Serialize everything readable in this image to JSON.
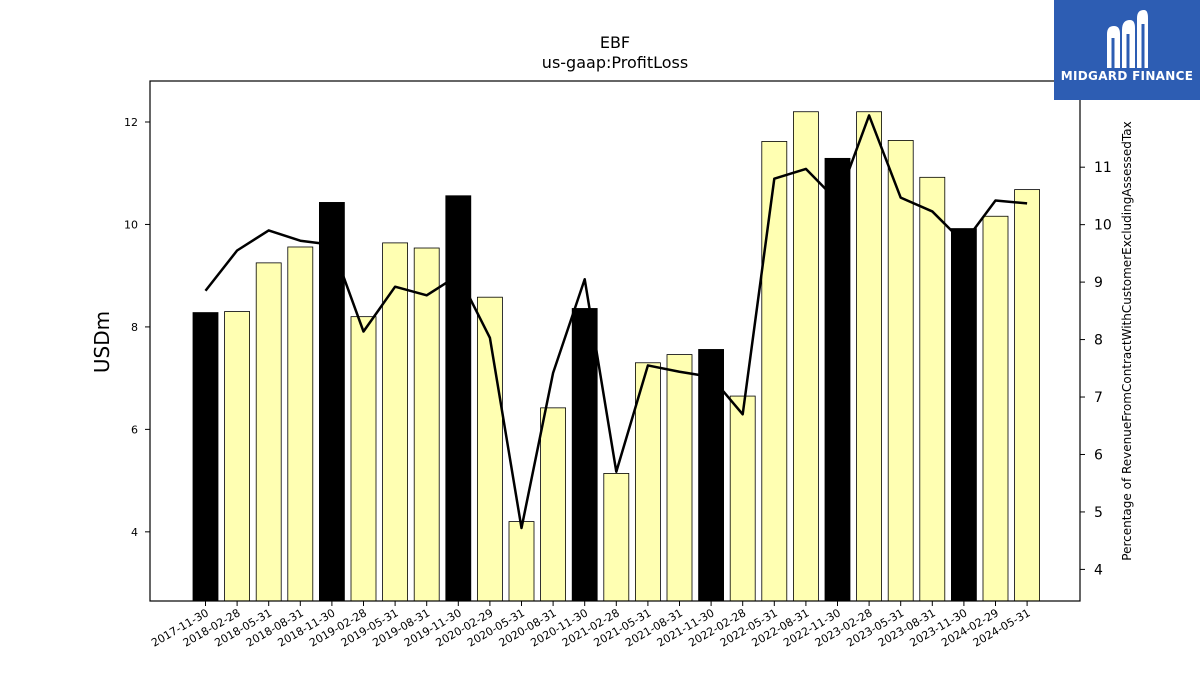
{
  "header": {
    "title": "EBF",
    "subtitle": "us-gaap:ProfitLoss"
  },
  "logo": {
    "text": "MIDGARD FINANCE",
    "icon": "midgard-m-icon",
    "background": "#2d5db3"
  },
  "colors": {
    "bar_highlight": "#000000",
    "bar_default": "#ffffb2",
    "line": "#000000"
  },
  "chart_data": {
    "type": "bar",
    "title": "EBF",
    "subtitle": "us-gaap:ProfitLoss",
    "ylabel": "USDm",
    "ylabel_right": "Percentage of RevenueFromContractWithCustomerExcludingAssessedTax",
    "ylim": [
      2.65,
      12.8
    ],
    "ylim_right": [
      3.45,
      12.5
    ],
    "yticks": [
      4,
      6,
      8,
      10,
      12
    ],
    "yticks_right": [
      4,
      5,
      6,
      7,
      8,
      9,
      10,
      11
    ],
    "grid": false,
    "categories": [
      "2017-11-30",
      "2018-02-28",
      "2018-05-31",
      "2018-08-31",
      "2018-11-30",
      "2019-02-28",
      "2019-05-31",
      "2019-08-31",
      "2019-11-30",
      "2020-02-29",
      "2020-05-31",
      "2020-08-31",
      "2020-11-30",
      "2021-02-28",
      "2021-05-31",
      "2021-08-31",
      "2021-11-30",
      "2022-02-28",
      "2022-05-31",
      "2022-08-31",
      "2022-11-30",
      "2023-02-28",
      "2023-05-31",
      "2023-08-31",
      "2023-11-30",
      "2024-02-29",
      "2024-05-31"
    ],
    "series": [
      {
        "type": "bar",
        "axis": "left",
        "values": [
          8.28,
          8.3,
          9.25,
          9.56,
          10.43,
          8.2,
          9.64,
          9.54,
          10.56,
          8.58,
          4.2,
          6.42,
          8.36,
          5.14,
          7.3,
          7.46,
          7.56,
          6.65,
          11.62,
          12.2,
          11.29,
          12.2,
          11.64,
          10.92,
          9.92,
          10.16,
          10.68
        ],
        "highlight": [
          true,
          false,
          false,
          false,
          true,
          false,
          false,
          false,
          true,
          false,
          false,
          false,
          true,
          false,
          false,
          false,
          true,
          false,
          false,
          false,
          true,
          false,
          false,
          false,
          true,
          false,
          false
        ]
      },
      {
        "type": "line",
        "axis": "right",
        "values": [
          8.85,
          9.55,
          9.9,
          9.72,
          9.65,
          8.14,
          8.92,
          8.77,
          9.12,
          8.03,
          4.72,
          7.42,
          9.05,
          5.7,
          7.55,
          7.44,
          7.35,
          6.7,
          10.8,
          10.97,
          10.41,
          11.9,
          10.47,
          10.23,
          9.68,
          10.42,
          10.37
        ]
      }
    ]
  }
}
